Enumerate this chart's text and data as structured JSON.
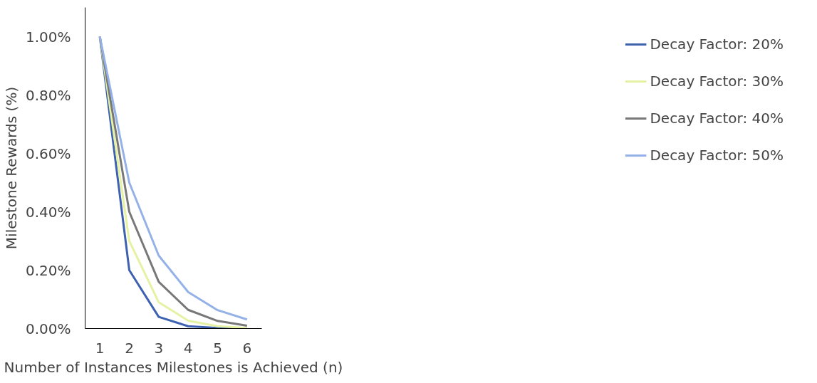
{
  "chart_data": {
    "type": "line",
    "xlabel": "Number of Instances Milestones is Achieved (n)",
    "ylabel": "Milestone Rewards (%)",
    "categories": [
      "1",
      "2",
      "3",
      "4",
      "5",
      "6"
    ],
    "series": [
      {
        "name": "Decay Factor: 20%",
        "color": "#3e62b0",
        "values": [
          1.0,
          0.2,
          0.04,
          0.008,
          0.002,
          0.0
        ]
      },
      {
        "name": "Decay Factor: 30%",
        "color": "#e5f2a4",
        "values": [
          1.0,
          0.3,
          0.09,
          0.027,
          0.008,
          0.002
        ]
      },
      {
        "name": "Decay Factor: 40%",
        "color": "#787878",
        "values": [
          1.0,
          0.4,
          0.16,
          0.064,
          0.026,
          0.01
        ]
      },
      {
        "name": "Decay Factor: 50%",
        "color": "#94b1e8",
        "values": [
          1.0,
          0.5,
          0.25,
          0.125,
          0.063,
          0.031
        ]
      }
    ],
    "ylim": [
      0,
      1.1
    ],
    "yticks": [
      {
        "value": 0,
        "label": "0.00%"
      },
      {
        "value": 0.2,
        "label": "0.20%"
      },
      {
        "value": 0.4,
        "label": "0.40%"
      },
      {
        "value": 0.6,
        "label": "0.60%"
      },
      {
        "value": 0.8,
        "label": "0.80%"
      },
      {
        "value": 1.0,
        "label": "1.00%"
      }
    ],
    "grid": false,
    "legend": "right",
    "line_style": "solid"
  }
}
